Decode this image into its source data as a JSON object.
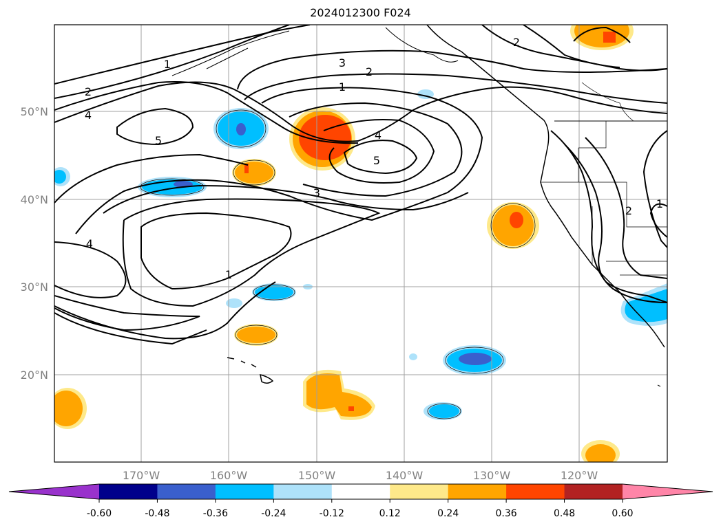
{
  "map": {
    "title": "2024012300 F024",
    "lat_labels": [
      {
        "value": "50°N",
        "lat": 50
      },
      {
        "value": "40°N",
        "lat": 40
      },
      {
        "value": "30°N",
        "lat": 30
      },
      {
        "value": "20°N",
        "lat": 20
      }
    ],
    "lon_labels": [
      {
        "value": "170°W",
        "lon": -170
      },
      {
        "value": "160°W",
        "lon": -160
      },
      {
        "value": "150°W",
        "lon": -150
      },
      {
        "value": "140°W",
        "lon": -140
      },
      {
        "value": "130°W",
        "lon": -130
      },
      {
        "value": "120°W",
        "lon": -120
      }
    ],
    "contour_labels": [
      "1",
      "2",
      "3",
      "4",
      "5"
    ]
  },
  "colorbar": {
    "ticks": [
      "-0.60",
      "-0.48",
      "-0.36",
      "-0.24",
      "-0.12",
      "0.12",
      "0.24",
      "0.36",
      "0.48",
      "0.60"
    ],
    "colors": {
      "under": "#9932cc",
      "bins": [
        "#00008b",
        "#3a5fcd",
        "#00bfff",
        "#aee2fa",
        "#ffffff",
        "#fee98a",
        "#ffa500",
        "#ff4500",
        "#b22222"
      ],
      "over": "#ff85a8"
    }
  }
}
